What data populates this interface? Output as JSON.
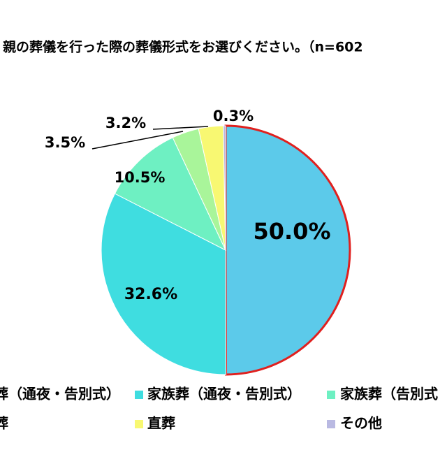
{
  "chart_data": {
    "type": "pie",
    "title": "親の葬儀を行った際の葬儀形式をお選びください。（n=602",
    "series": [
      {
        "name": "葬（通夜・告別式）",
        "color": "#5ccaea",
        "values": [
          50.0
        ],
        "value_labels": [
          "50.0%"
        ]
      },
      {
        "name": "家族葬（通夜・告別式）",
        "color": "#3fdde0",
        "values": [
          32.6
        ],
        "value_labels": [
          "32.6%"
        ]
      },
      {
        "name": "家族葬（告別式",
        "color": "#6ef0c2",
        "values": [
          10.5
        ],
        "value_labels": [
          "10.5%"
        ]
      },
      {
        "name": "葬",
        "color": "#a9f59a",
        "values": [
          3.5
        ],
        "value_labels": [
          "3.5%"
        ]
      },
      {
        "name": "直葬",
        "color": "#f8f872",
        "values": [
          3.2
        ],
        "value_labels": [
          "3.2%"
        ]
      },
      {
        "name": "その他",
        "color": "#b9b9e2",
        "values": [
          0.3
        ],
        "value_labels": [
          "0.3%"
        ]
      }
    ]
  }
}
